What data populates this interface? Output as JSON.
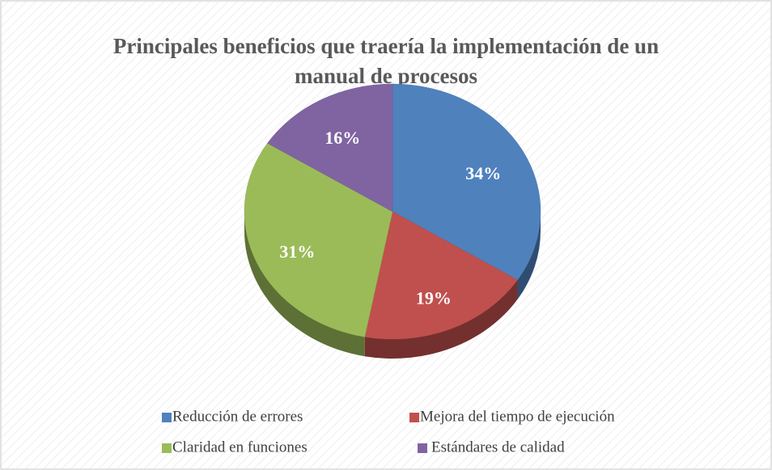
{
  "chart_data": {
    "type": "pie",
    "title": "Principales beneficios que traería la implementación de un manual de procesos",
    "categories": [
      "Reducción de errores",
      "Mejora del tiempo de ejecución",
      "Claridad en funciones",
      "Estándares de calidad"
    ],
    "values": [
      34,
      19,
      31,
      16
    ],
    "value_labels": [
      "34%",
      "19%",
      "31%",
      "16%"
    ],
    "colors": [
      "#4f81bd",
      "#c0504d",
      "#9bbb59",
      "#8064a2"
    ],
    "legend": "bottom"
  }
}
